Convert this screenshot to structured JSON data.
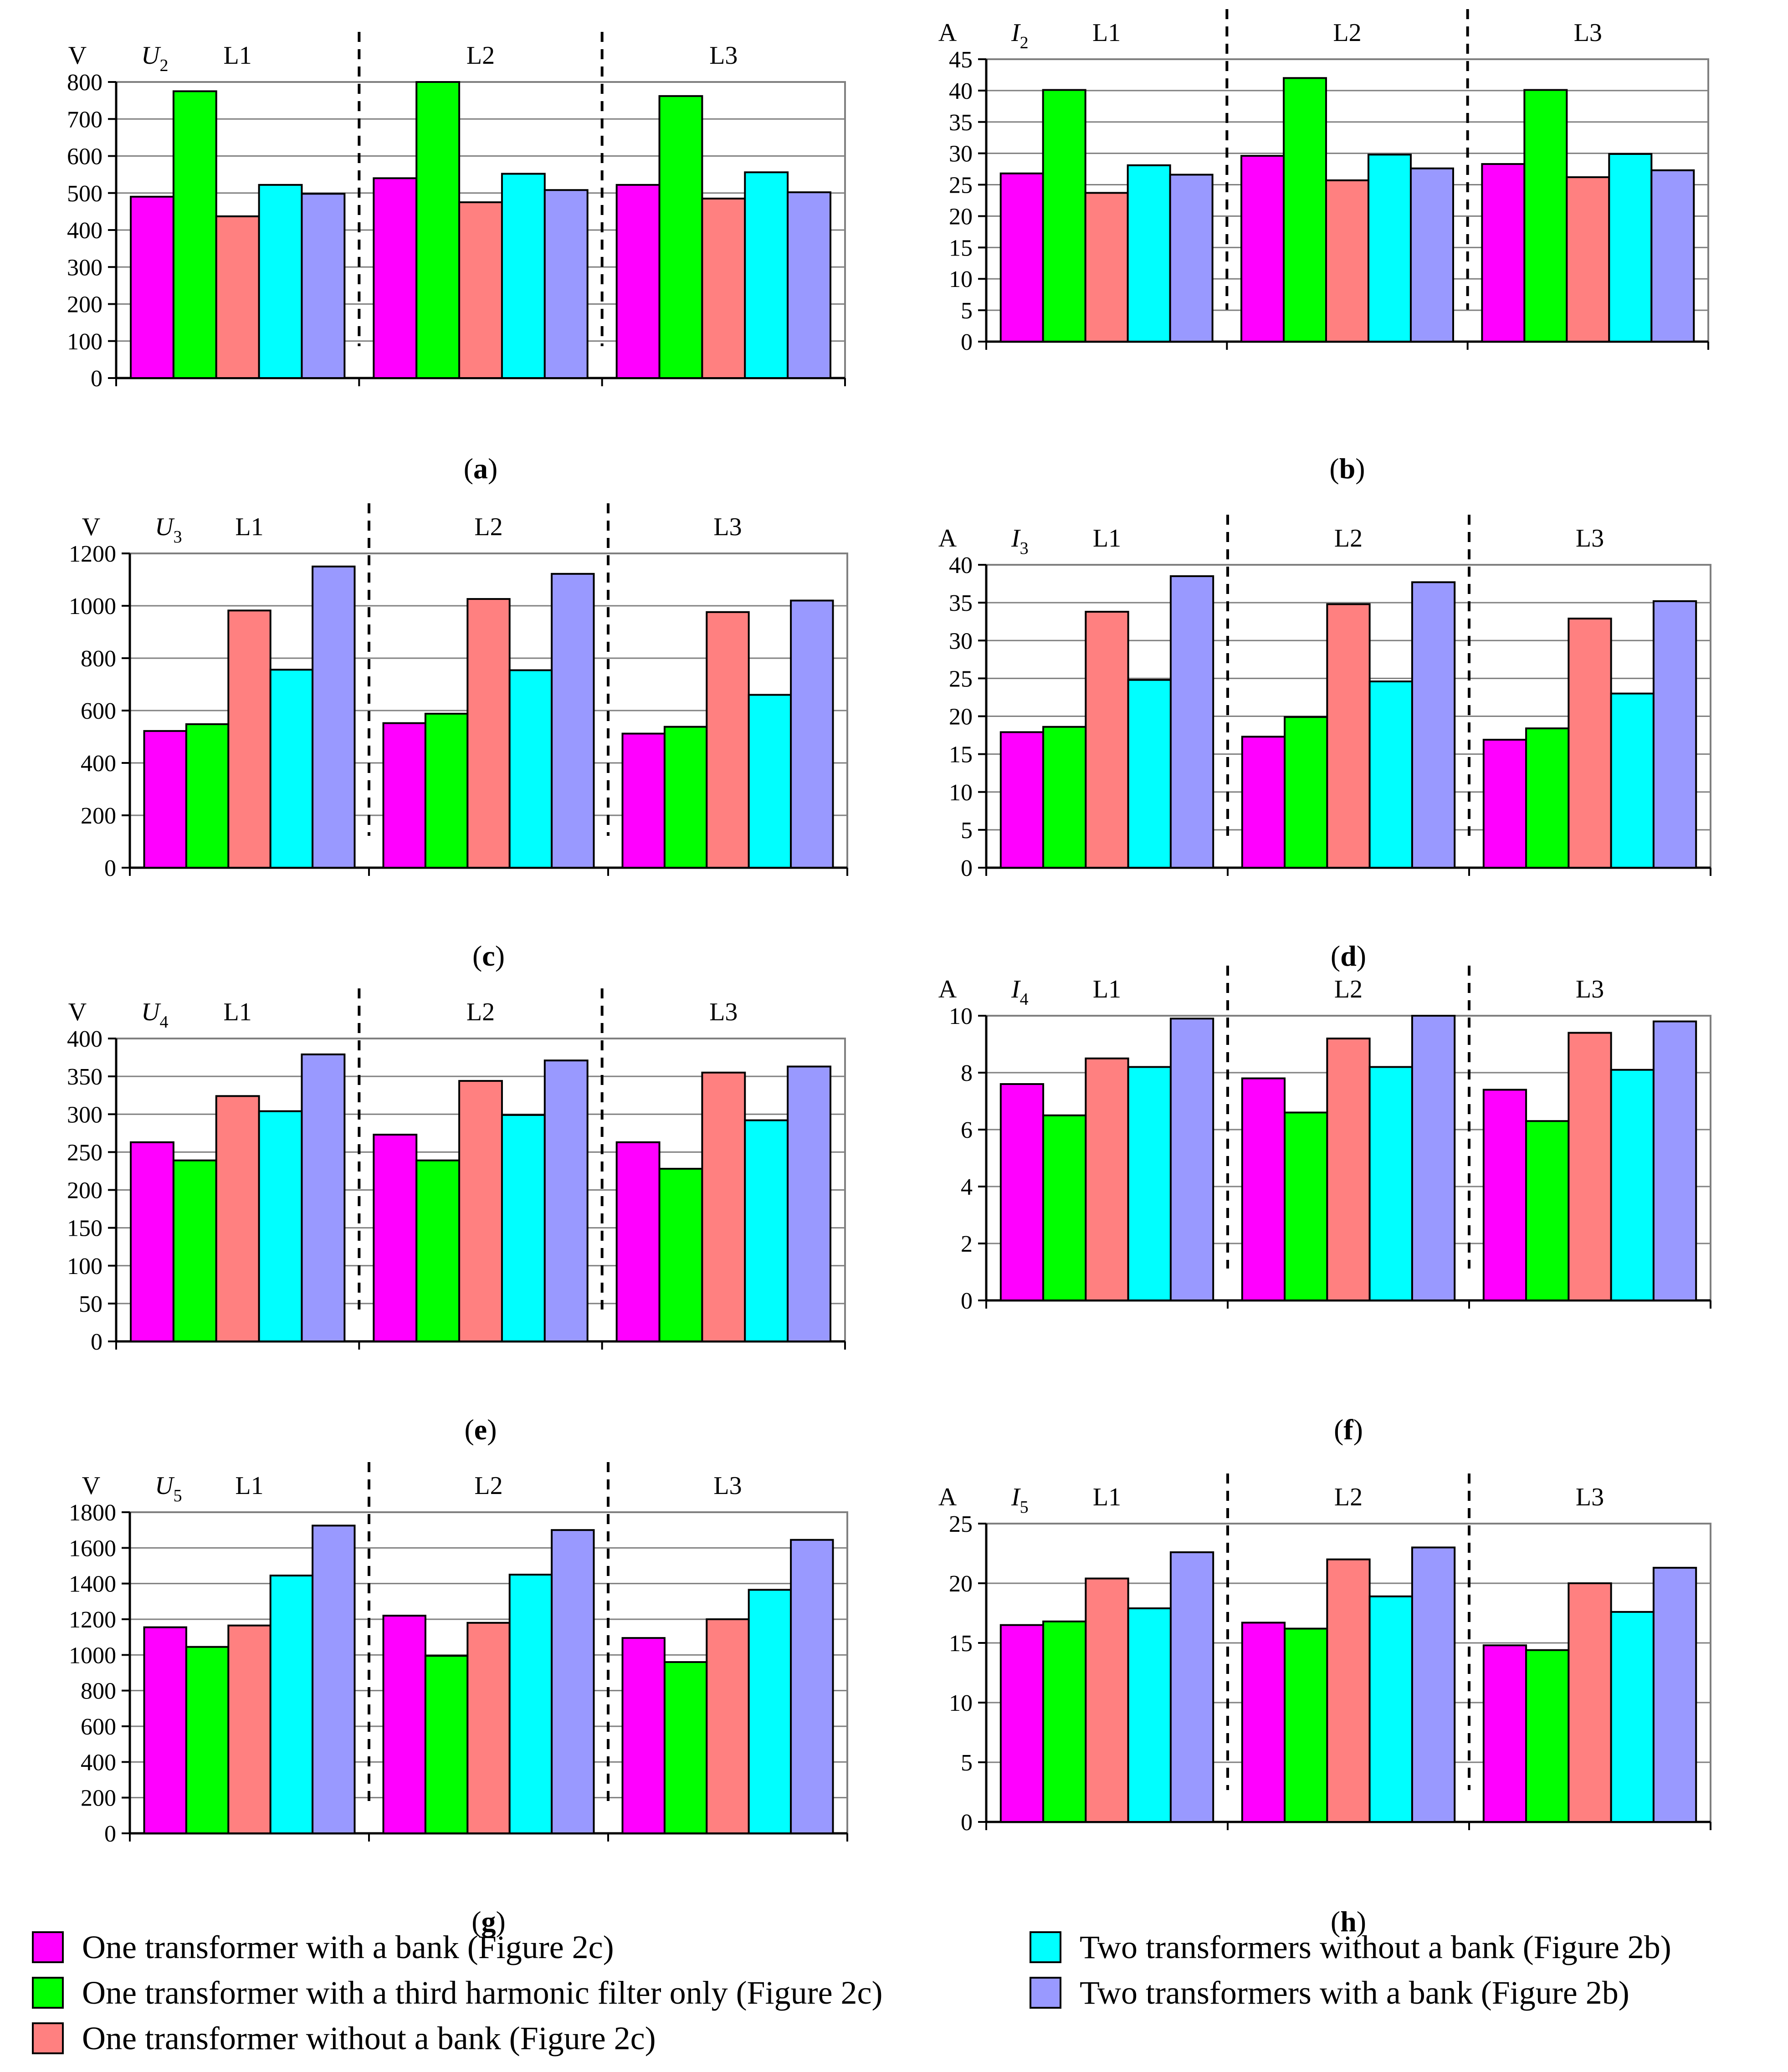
{
  "colors": {
    "series": [
      "#ff00ff",
      "#00ff00",
      "#ff8080",
      "#00ffff",
      "#9999ff"
    ],
    "grid": "#808080",
    "axis": "#000000",
    "divider": "#000000"
  },
  "legend": [
    {
      "label": "One transformer with a bank (Figure 2c)"
    },
    {
      "label": "One transformer with a third harmonic filter only (Figure 2c)"
    },
    {
      "label": "One transformer without a bank (Figure 2c)"
    },
    {
      "label": "Two transformers without a bank (Figure 2b)"
    },
    {
      "label": "Two transformers with a bank (Figure 2b)"
    }
  ],
  "chart_data": [
    {
      "id": "a",
      "type": "bar",
      "panel_label": "a",
      "unit": "V",
      "quantity_symbol": "U",
      "quantity_subscript": "2",
      "categories": [
        "L1",
        "L2",
        "L3"
      ],
      "ylim": [
        0,
        800
      ],
      "yticks": [
        0,
        100,
        200,
        300,
        400,
        500,
        600,
        700,
        800
      ],
      "grid": true,
      "series": [
        {
          "name": "One transformer with a bank (Figure 2c)",
          "values": [
            490,
            540,
            522
          ]
        },
        {
          "name": "One transformer with a third harmonic filter only (Figure 2c)",
          "values": [
            775,
            800,
            762
          ]
        },
        {
          "name": "One transformer without a bank (Figure 2c)",
          "values": [
            437,
            475,
            485
          ]
        },
        {
          "name": "Two transformers without a bank (Figure 2b)",
          "values": [
            522,
            552,
            556
          ]
        },
        {
          "name": "Two transformers with a bank (Figure 2b)",
          "values": [
            498,
            508,
            502
          ]
        }
      ]
    },
    {
      "id": "b",
      "type": "bar",
      "panel_label": "b",
      "unit": "A",
      "quantity_symbol": "I",
      "quantity_subscript": "2",
      "categories": [
        "L1",
        "L2",
        "L3"
      ],
      "ylim": [
        0,
        45
      ],
      "yticks": [
        0,
        5,
        10,
        15,
        20,
        25,
        30,
        35,
        40,
        45
      ],
      "grid": true,
      "series": [
        {
          "name": "One transformer with a bank (Figure 2c)",
          "values": [
            26.8,
            29.6,
            28.3
          ]
        },
        {
          "name": "One transformer with a third harmonic filter only (Figure 2c)",
          "values": [
            40.1,
            42.0,
            40.1
          ]
        },
        {
          "name": "One transformer without a bank (Figure 2c)",
          "values": [
            23.7,
            25.7,
            26.2
          ]
        },
        {
          "name": "Two transformers without a bank (Figure 2b)",
          "values": [
            28.1,
            29.8,
            29.9
          ]
        },
        {
          "name": "Two transformers with a bank (Figure 2b)",
          "values": [
            26.6,
            27.6,
            27.3
          ]
        }
      ]
    },
    {
      "id": "c",
      "type": "bar",
      "panel_label": "c",
      "unit": "V",
      "quantity_symbol": "U",
      "quantity_subscript": "3",
      "categories": [
        "L1",
        "L2",
        "L3"
      ],
      "ylim": [
        0,
        1200
      ],
      "yticks": [
        0,
        200,
        400,
        600,
        800,
        1000,
        1200
      ],
      "grid": true,
      "series": [
        {
          "name": "One transformer with a bank (Figure 2c)",
          "values": [
            522,
            552,
            512
          ]
        },
        {
          "name": "One transformer with a third harmonic filter only (Figure 2c)",
          "values": [
            548,
            588,
            538
          ]
        },
        {
          "name": "One transformer without a bank (Figure 2c)",
          "values": [
            982,
            1026,
            976
          ]
        },
        {
          "name": "Two transformers without a bank (Figure 2b)",
          "values": [
            756,
            754,
            660
          ]
        },
        {
          "name": "Two transformers with a bank (Figure 2b)",
          "values": [
            1150,
            1122,
            1020
          ]
        }
      ]
    },
    {
      "id": "d",
      "type": "bar",
      "panel_label": "d",
      "unit": "A",
      "quantity_symbol": "I",
      "quantity_subscript": "3",
      "categories": [
        "L1",
        "L2",
        "L3"
      ],
      "ylim": [
        0,
        40
      ],
      "yticks": [
        0,
        5,
        10,
        15,
        20,
        25,
        30,
        35,
        40
      ],
      "grid": true,
      "series": [
        {
          "name": "One transformer with a bank (Figure 2c)",
          "values": [
            17.9,
            17.3,
            16.9
          ]
        },
        {
          "name": "One transformer with a third harmonic filter only (Figure 2c)",
          "values": [
            18.6,
            19.9,
            18.4
          ]
        },
        {
          "name": "One transformer without a bank (Figure 2c)",
          "values": [
            33.8,
            34.8,
            32.9
          ]
        },
        {
          "name": "Two transformers without a bank (Figure 2b)",
          "values": [
            24.8,
            24.6,
            23.0
          ]
        },
        {
          "name": "Two transformers with a bank (Figure 2b)",
          "values": [
            38.5,
            37.7,
            35.2
          ]
        }
      ]
    },
    {
      "id": "e",
      "type": "bar",
      "panel_label": "e",
      "unit": "V",
      "quantity_symbol": "U",
      "quantity_subscript": "4",
      "categories": [
        "L1",
        "L2",
        "L3"
      ],
      "ylim": [
        0,
        400
      ],
      "yticks": [
        0,
        50,
        100,
        150,
        200,
        250,
        300,
        350,
        400
      ],
      "grid": true,
      "series": [
        {
          "name": "One transformer with a bank (Figure 2c)",
          "values": [
            263,
            273,
            263
          ]
        },
        {
          "name": "One transformer with a third harmonic filter only (Figure 2c)",
          "values": [
            239,
            239,
            228
          ]
        },
        {
          "name": "One transformer without a bank (Figure 2c)",
          "values": [
            324,
            344,
            355
          ]
        },
        {
          "name": "Two transformers without a bank (Figure 2b)",
          "values": [
            304,
            299,
            292
          ]
        },
        {
          "name": "Two transformers with a bank (Figure 2b)",
          "values": [
            379,
            371,
            363
          ]
        }
      ]
    },
    {
      "id": "f",
      "type": "bar",
      "panel_label": "f",
      "unit": "A",
      "quantity_symbol": "I",
      "quantity_subscript": "4",
      "categories": [
        "L1",
        "L2",
        "L3"
      ],
      "ylim": [
        0,
        10
      ],
      "yticks": [
        0,
        2,
        4,
        6,
        8,
        10
      ],
      "grid": true,
      "series": [
        {
          "name": "One transformer with a bank (Figure 2c)",
          "values": [
            7.6,
            7.8,
            7.4
          ]
        },
        {
          "name": "One transformer with a third harmonic filter only (Figure 2c)",
          "values": [
            6.5,
            6.6,
            6.3
          ]
        },
        {
          "name": "One transformer without a bank (Figure 2c)",
          "values": [
            8.5,
            9.2,
            9.4
          ]
        },
        {
          "name": "Two transformers without a bank (Figure 2b)",
          "values": [
            8.2,
            8.2,
            8.1
          ]
        },
        {
          "name": "Two transformers with a bank (Figure 2b)",
          "values": [
            9.9,
            10.0,
            9.8
          ]
        }
      ]
    },
    {
      "id": "g",
      "type": "bar",
      "panel_label": "g",
      "unit": "V",
      "quantity_symbol": "U",
      "quantity_subscript": "5",
      "categories": [
        "L1",
        "L2",
        "L3"
      ],
      "ylim": [
        0,
        1800
      ],
      "yticks": [
        0,
        200,
        400,
        600,
        800,
        1000,
        1200,
        1400,
        1600,
        1800
      ],
      "grid": true,
      "series": [
        {
          "name": "One transformer with a bank (Figure 2c)",
          "values": [
            1155,
            1220,
            1095
          ]
        },
        {
          "name": "One transformer with a third harmonic filter only (Figure 2c)",
          "values": [
            1045,
            995,
            960
          ]
        },
        {
          "name": "One transformer without a bank (Figure 2c)",
          "values": [
            1165,
            1180,
            1200
          ]
        },
        {
          "name": "Two transformers without a bank (Figure 2b)",
          "values": [
            1445,
            1450,
            1365
          ]
        },
        {
          "name": "Two transformers with a bank (Figure 2b)",
          "values": [
            1725,
            1700,
            1645
          ]
        }
      ]
    },
    {
      "id": "h",
      "type": "bar",
      "panel_label": "h",
      "unit": "A",
      "quantity_symbol": "I",
      "quantity_subscript": "5",
      "categories": [
        "L1",
        "L2",
        "L3"
      ],
      "ylim": [
        0,
        25
      ],
      "yticks": [
        0,
        5,
        10,
        15,
        20,
        25
      ],
      "grid": true,
      "series": [
        {
          "name": "One transformer with a bank (Figure 2c)",
          "values": [
            16.5,
            16.7,
            14.8
          ]
        },
        {
          "name": "One transformer with a third harmonic filter only (Figure 2c)",
          "values": [
            16.8,
            16.2,
            14.4
          ]
        },
        {
          "name": "One transformer without a bank (Figure 2c)",
          "values": [
            20.4,
            22.0,
            20.0
          ]
        },
        {
          "name": "Two transformers without a bank (Figure 2b)",
          "values": [
            17.9,
            18.9,
            17.6
          ]
        },
        {
          "name": "Two transformers with a bank (Figure 2b)",
          "values": [
            22.6,
            23.0,
            21.3
          ]
        }
      ]
    }
  ]
}
